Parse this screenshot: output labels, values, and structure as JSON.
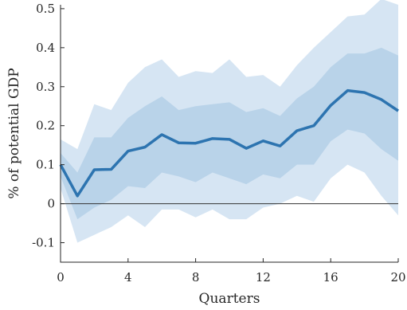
{
  "chart_data": {
    "type": "line",
    "title": "",
    "xlabel": "Quarters",
    "ylabel": "% of potential GDP",
    "xlim": [
      0,
      20
    ],
    "ylim": [
      -0.15,
      0.51
    ],
    "xticks": [
      0,
      4,
      8,
      12,
      16,
      20
    ],
    "yticks": [
      -0.1,
      0,
      0.1,
      0.2,
      0.3,
      0.4,
      0.5
    ],
    "xtick_labels": [
      "0",
      "4",
      "8",
      "12",
      "16",
      "20"
    ],
    "ytick_labels": [
      "-0.1",
      "0",
      "0.1",
      "0.2",
      "0.3",
      "0.4",
      "0.5"
    ],
    "grid": false,
    "zero_line": true,
    "colors": {
      "line": "#2d74b0",
      "inner_band": "#b9d3e9",
      "outer_band": "#d6e5f3",
      "axis": "#262626",
      "zero_line": "#333333"
    },
    "x": [
      0,
      1,
      2,
      3,
      4,
      5,
      6,
      7,
      8,
      9,
      10,
      11,
      12,
      13,
      14,
      15,
      16,
      17,
      18,
      19,
      20
    ],
    "median": [
      0.1,
      0.02,
      0.087,
      0.088,
      0.135,
      0.145,
      0.177,
      0.156,
      0.155,
      0.167,
      0.165,
      0.142,
      0.161,
      0.148,
      0.187,
      0.2,
      0.252,
      0.29,
      0.285,
      0.267,
      0.238
    ],
    "inner_band": {
      "lower": [
        0.07,
        -0.04,
        -0.01,
        0.01,
        0.045,
        0.04,
        0.08,
        0.07,
        0.055,
        0.08,
        0.065,
        0.05,
        0.075,
        0.065,
        0.1,
        0.1,
        0.16,
        0.19,
        0.18,
        0.14,
        0.11
      ],
      "upper": [
        0.13,
        0.08,
        0.17,
        0.17,
        0.22,
        0.25,
        0.275,
        0.24,
        0.25,
        0.255,
        0.26,
        0.235,
        0.245,
        0.225,
        0.27,
        0.3,
        0.35,
        0.385,
        0.385,
        0.4,
        0.38
      ]
    },
    "outer_band": {
      "lower": [
        0.04,
        -0.1,
        -0.08,
        -0.06,
        -0.03,
        -0.06,
        -0.015,
        -0.015,
        -0.035,
        -0.015,
        -0.04,
        -0.04,
        -0.01,
        0.0,
        0.02,
        0.005,
        0.065,
        0.1,
        0.08,
        0.02,
        -0.03
      ],
      "upper": [
        0.165,
        0.14,
        0.255,
        0.24,
        0.31,
        0.35,
        0.37,
        0.325,
        0.34,
        0.335,
        0.37,
        0.325,
        0.33,
        0.3,
        0.355,
        0.4,
        0.44,
        0.48,
        0.485,
        0.525,
        0.51
      ]
    }
  }
}
